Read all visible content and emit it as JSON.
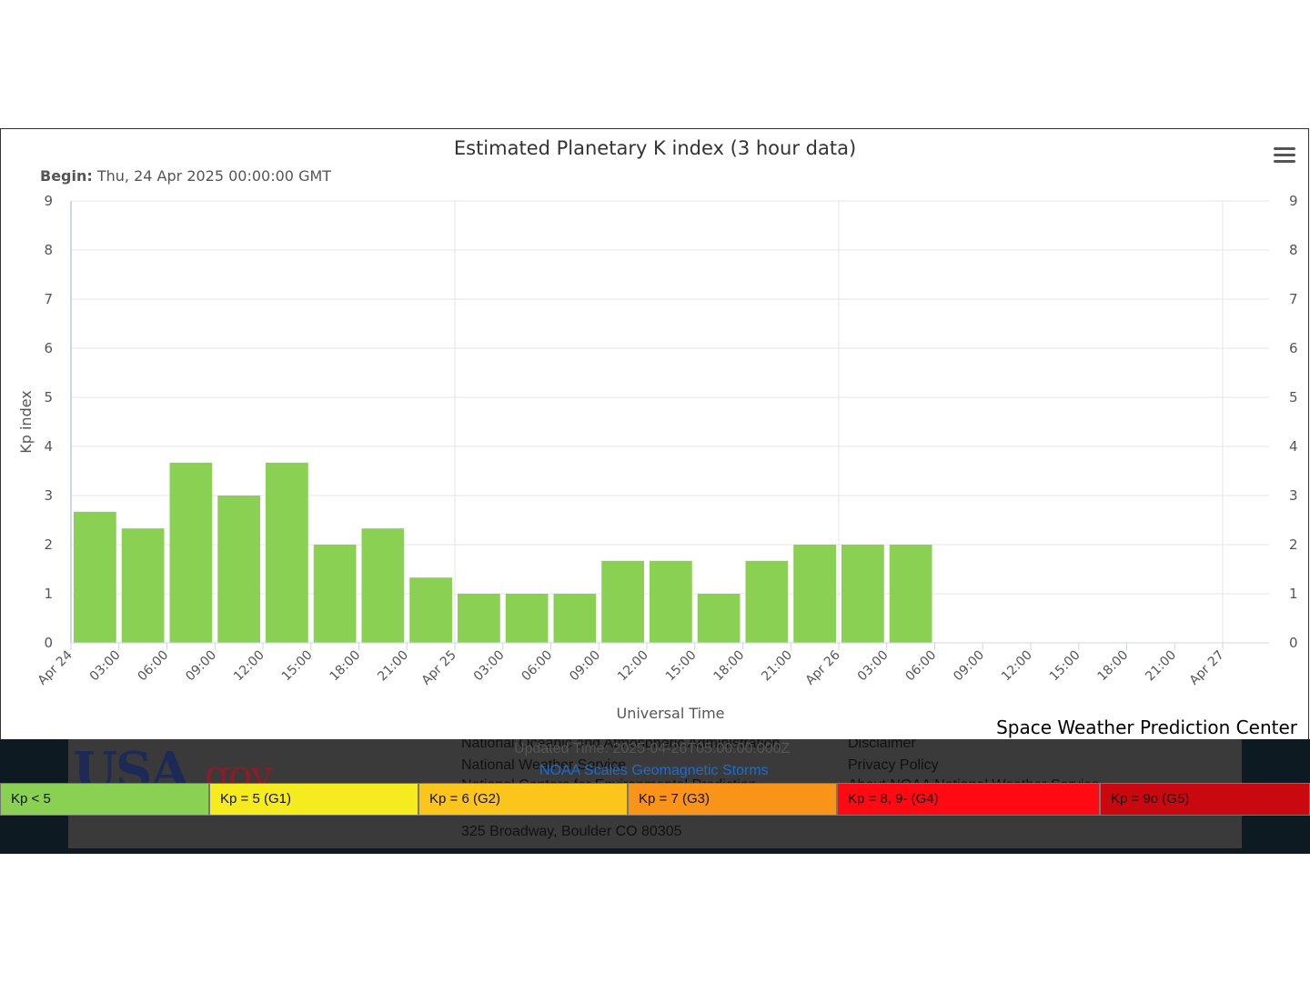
{
  "chart_data": {
    "type": "bar",
    "title": "Estimated Planetary K index (3 hour data)",
    "begin_label": "Begin:",
    "begin_value": "Thu, 24 Apr 2025 00:00:00 GMT",
    "ylabel": "Kp index",
    "xlabel": "Universal Time",
    "ylim": [
      0,
      9
    ],
    "y_ticks": [
      "0",
      "1",
      "2",
      "3",
      "4",
      "5",
      "6",
      "7",
      "8",
      "9"
    ],
    "x_tick_labels": [
      "Apr 24",
      "03:00",
      "06:00",
      "09:00",
      "12:00",
      "15:00",
      "18:00",
      "21:00",
      "Apr 25",
      "03:00",
      "06:00",
      "09:00",
      "12:00",
      "15:00",
      "18:00",
      "21:00",
      "Apr 26",
      "03:00",
      "06:00",
      "09:00",
      "12:00",
      "15:00",
      "18:00",
      "21:00",
      "Apr 27"
    ],
    "bars_start_hours": [
      0,
      3,
      6,
      9,
      12,
      15,
      18,
      21,
      24,
      27,
      30,
      33,
      36,
      39,
      42,
      45,
      48,
      51
    ],
    "values": [
      2.67,
      2.33,
      3.67,
      3.0,
      3.67,
      2.0,
      2.33,
      1.33,
      1.0,
      1.0,
      1.0,
      1.67,
      1.67,
      1.0,
      1.67,
      2.0,
      2.0,
      2.0
    ],
    "x_range_hours": [
      0,
      72
    ],
    "bar_color": "#8ad153",
    "grid": true,
    "credit": "Space Weather Prediction Center"
  },
  "footer": {
    "logo_usa": "USA",
    "logo_gov": ".gov",
    "col1": [
      "National Oceanic and Atmospheric Administration",
      "National Weather Service",
      "National Centers for Environmental Prediction"
    ],
    "address": "325 Broadway, Boulder CO 80305",
    "updated": "Updated Time: 2025-04-26T05:00:00.000Z",
    "scales_link": "NOAA Scales Geomagnetic Storms",
    "col2": [
      "Disclaimer",
      "Privacy Policy",
      "About NOAA National Weather Service"
    ]
  },
  "scale_legend": [
    {
      "label": "Kp < 5",
      "color": "#8ad153"
    },
    {
      "label": "Kp = 5 (G1)",
      "color": "#f6eb1e"
    },
    {
      "label": "Kp = 6 (G2)",
      "color": "#fbc51b"
    },
    {
      "label": "Kp = 7 (G3)",
      "color": "#fa9418"
    },
    {
      "label": "Kp = 8, 9- (G4)",
      "color": "#ff0a12"
    },
    {
      "label": "Kp = 9o (G5)",
      "color": "#c90810"
    }
  ]
}
